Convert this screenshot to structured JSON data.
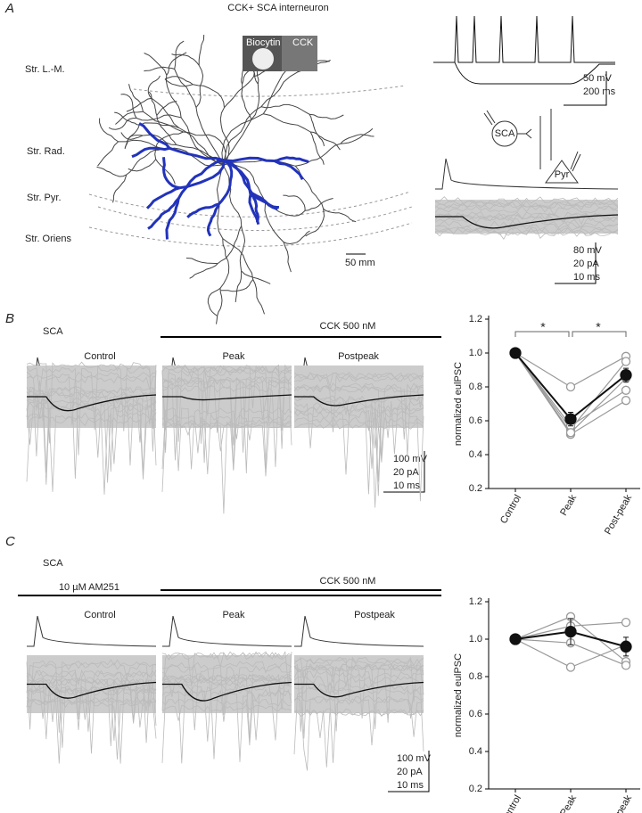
{
  "figure": {
    "panel_labels": [
      "A",
      "B",
      "C"
    ],
    "panel_a": {
      "title": "CCK+ SCA interneuron",
      "layers": [
        "Str. L.-M.",
        "Str. Rad.",
        "Str. Pyr.",
        "Str. Oriens"
      ],
      "inset_labels": [
        "Biocytin",
        "CCK"
      ],
      "morph_scale": "50 mm",
      "firing_scale": [
        "50 mV",
        "200 ms"
      ],
      "schematic": [
        "SCA",
        "Pyr"
      ],
      "trace_scale": [
        "80 mV",
        "20 pA",
        "10 ms"
      ]
    },
    "panel_b": {
      "cell": "SCA",
      "drug": "CCK 500 nM",
      "conditions": [
        "Control",
        "Peak",
        "Postpeak"
      ],
      "trace_scale": [
        "100 mV",
        "20 pA",
        "10 ms"
      ]
    },
    "panel_c": {
      "cell": "SCA",
      "pretreat": "10 µM AM251",
      "drug": "CCK 500 nM",
      "conditions": [
        "Control",
        "Peak",
        "Postpeak"
      ],
      "trace_scale": [
        "100 mV",
        "20 pA",
        "10 ms"
      ]
    }
  },
  "chart_data": [
    {
      "type": "line",
      "y_label": "normalized eulPSC",
      "categories": [
        "Control",
        "Peak",
        "Post-peak"
      ],
      "ylim": [
        0.2,
        1.2
      ],
      "yticks": [
        0.2,
        0.4,
        0.6,
        0.8,
        {
          "value": 1.0,
          "label": "1.0"
        },
        1.2
      ],
      "annotations": [
        "*",
        "*"
      ],
      "series": [
        {
          "color": "#999999",
          "values": [
            1.0,
            0.8,
            0.98
          ]
        },
        {
          "color": "#999999",
          "values": [
            1.0,
            0.55,
            0.95
          ]
        },
        {
          "color": "#999999",
          "values": [
            1.0,
            0.52,
            0.72
          ]
        },
        {
          "color": "#999999",
          "values": [
            1.0,
            0.57,
            0.78
          ]
        },
        {
          "color": "#999999",
          "values": [
            1.0,
            0.53,
            0.85
          ]
        },
        {
          "color": "#111111",
          "values": [
            1.0,
            0.61,
            0.87
          ],
          "errors": [
            null,
            0.04,
            0.04
          ]
        }
      ]
    },
    {
      "type": "line",
      "y_label": "normalized eulPSC",
      "categories": [
        "Control",
        "Peak",
        "Post-peak"
      ],
      "ylim": [
        0.2,
        1.2
      ],
      "yticks": [
        0.2,
        0.4,
        0.6,
        0.8,
        {
          "value": 1.0,
          "label": "1.0"
        },
        1.2
      ],
      "series": [
        {
          "color": "#999999",
          "values": [
            1.0,
            0.85,
            0.97
          ]
        },
        {
          "color": "#999999",
          "values": [
            1.0,
            1.12,
            0.88
          ]
        },
        {
          "color": "#999999",
          "values": [
            1.0,
            1.07,
            1.09
          ]
        },
        {
          "color": "#999999",
          "values": [
            1.0,
            0.98,
            0.86
          ]
        },
        {
          "color": "#111111",
          "values": [
            1.0,
            1.04,
            0.96
          ],
          "errors": [
            null,
            0.07,
            0.05
          ]
        }
      ]
    }
  ]
}
